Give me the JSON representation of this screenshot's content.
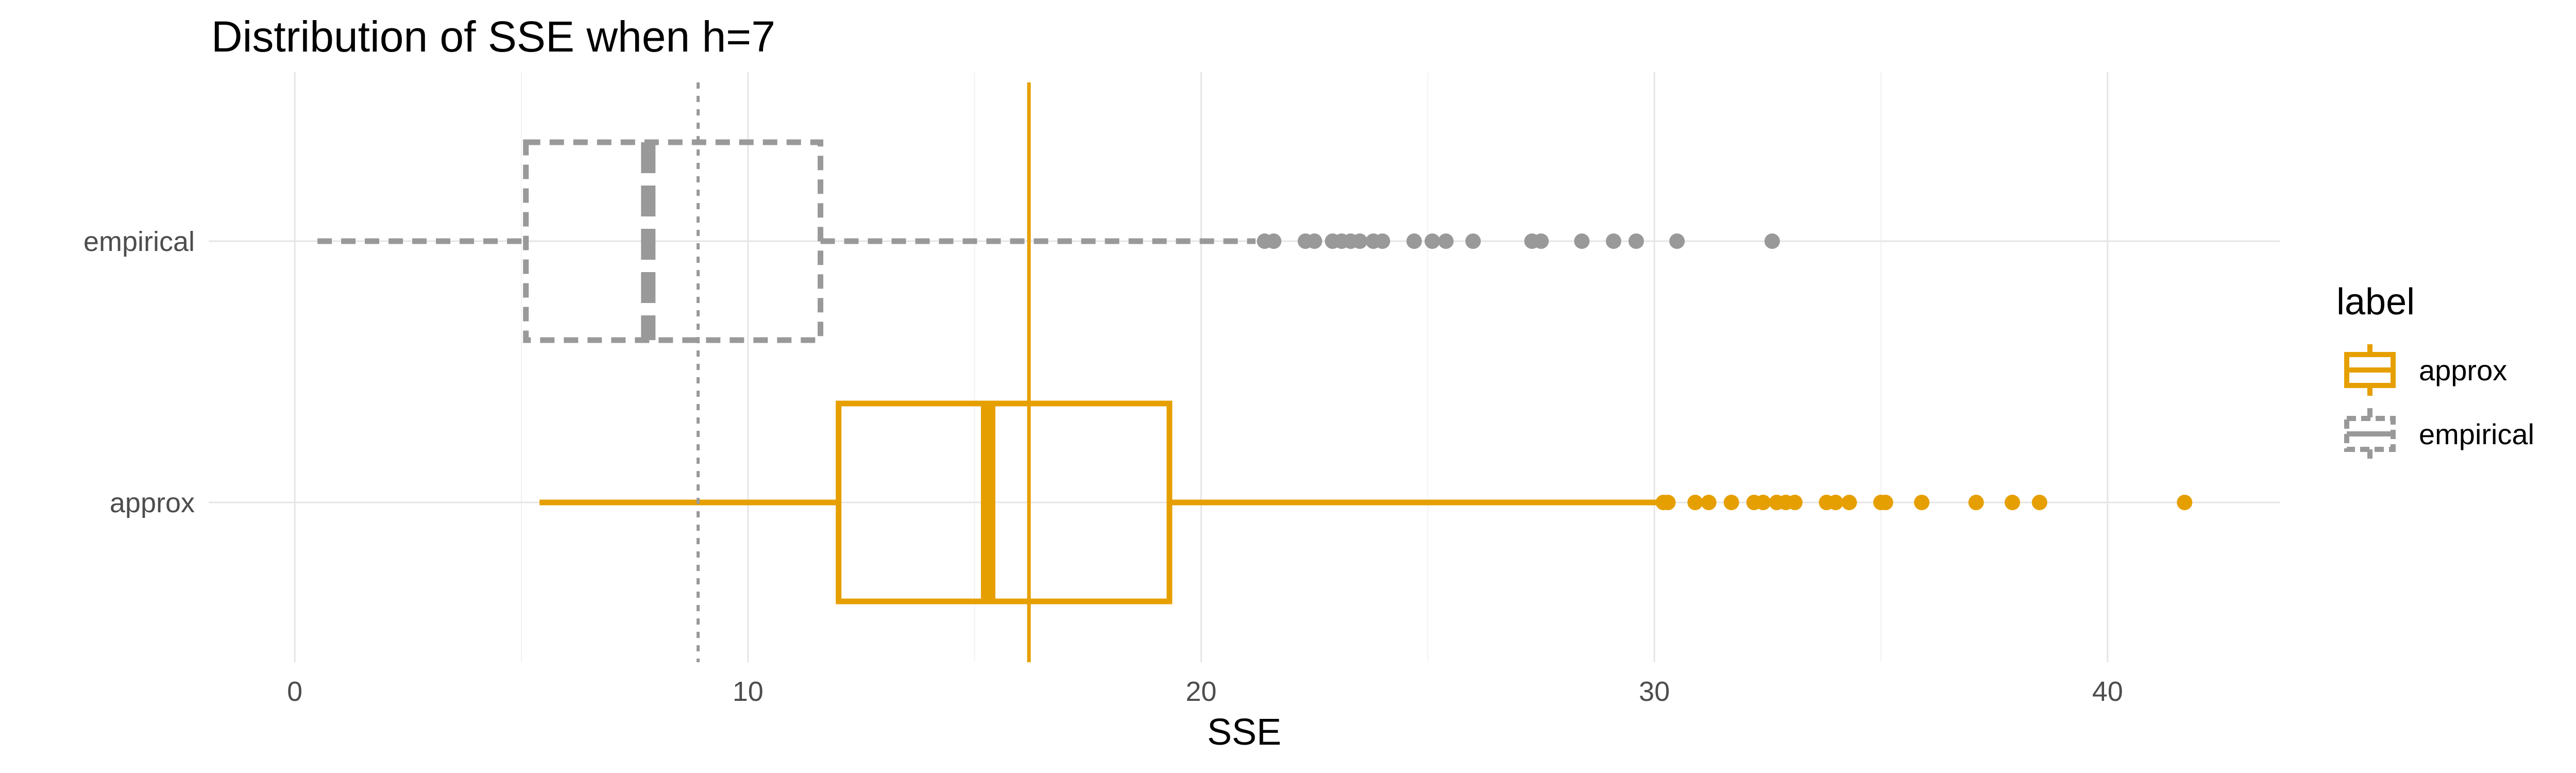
{
  "chart_data": {
    "type": "boxplot",
    "title": "Distribution of SSE when h=7",
    "xlabel": "SSE",
    "ylabel": "",
    "xlim": [
      -1.9,
      43.8
    ],
    "x_ticks": [
      0,
      10,
      20,
      30,
      40
    ],
    "grid": true,
    "legend": {
      "title": "label",
      "position": "right",
      "entries": [
        "approx",
        "empirical"
      ]
    },
    "colors": {
      "approx": "#E69F00",
      "empirical": "#999999",
      "grid": "#e5e5e5"
    },
    "reference_lines": [
      {
        "x": 8.9,
        "style": "dotted",
        "color": "#999999"
      },
      {
        "x": 16.2,
        "style": "solid",
        "color": "#E69F00"
      }
    ],
    "series": [
      {
        "name": "empirical",
        "stats": {
          "whisker_low": 0.5,
          "q1": 5.1,
          "median": 7.8,
          "q3": 11.6,
          "whisker_high": 21.2
        },
        "outliers": [
          21.4,
          21.6,
          22.3,
          22.5,
          22.9,
          23.1,
          23.3,
          23.5,
          23.8,
          24.0,
          24.7,
          25.1,
          25.4,
          26.0,
          27.3,
          27.5,
          28.4,
          29.1,
          29.6,
          30.5,
          32.6
        ],
        "line_style": "dashed"
      },
      {
        "name": "approx",
        "stats": {
          "whisker_low": 5.4,
          "q1": 12.0,
          "median": 15.3,
          "q3": 19.3,
          "whisker_high": 30.1
        },
        "outliers": [
          30.2,
          30.3,
          30.9,
          31.2,
          31.7,
          32.2,
          32.4,
          32.7,
          32.9,
          33.1,
          33.8,
          34.0,
          34.3,
          35.0,
          35.1,
          35.9,
          37.1,
          37.9,
          38.5,
          41.7
        ],
        "line_style": "solid"
      }
    ]
  }
}
